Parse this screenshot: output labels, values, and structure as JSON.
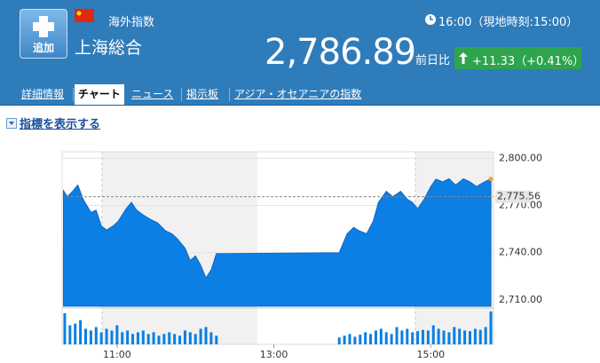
{
  "header": {
    "add_button": "追加",
    "category": "海外指数",
    "name": "上海総合",
    "time": "16:00（現地時刻:15:00）",
    "price": "2,786.89",
    "change_label": "前日比",
    "change": "+11.33（+0.41%）"
  },
  "tabs": [
    "詳細情報",
    "チャート",
    "ニュース",
    "掲示板",
    "アジア・オセアニアの指数"
  ],
  "indicator_link": "指標を表示する",
  "chart_data": {
    "type": "area",
    "x": [
      619,
      622,
      626,
      630,
      634,
      640,
      644,
      648,
      652,
      657,
      661,
      667,
      671,
      675,
      680,
      686,
      691,
      697,
      702,
      706,
      712,
      716,
      720,
      724,
      728,
      732,
      736,
      830,
      836,
      841,
      845,
      851,
      856,
      860,
      866,
      871,
      877,
      882,
      886,
      890,
      895,
      900,
      904,
      909,
      914,
      919,
      925,
      930,
      935,
      941,
      946
    ],
    "series": [
      {
        "color": "#0b7fe3",
        "values": [
          2779.4,
          2775.6,
          2779,
          2783,
          2774,
          2765.6,
          2767,
          2757,
          2754.4,
          2757,
          2760,
          2768,
          2772,
          2767,
          2764,
          2761,
          2759,
          2754,
          2752,
          2749,
          2743,
          2735,
          2738,
          2732,
          2724,
          2729,
          2739.4,
          2740,
          2752,
          2756,
          2754,
          2752,
          2760,
          2772,
          2779,
          2775.6,
          2779,
          2774,
          2772,
          2768,
          2774,
          2782,
          2786.7,
          2785,
          2787,
          2783,
          2787,
          2785,
          2782,
          2785,
          2786.89
        ]
      }
    ],
    "xlim": [
      618,
      948
    ],
    "xticks": [
      {
        "value": 660,
        "label": "11:00"
      },
      {
        "value": 780,
        "label": "13:00"
      },
      {
        "value": 900,
        "label": "15:00"
      }
    ],
    "ylim": [
      2706,
      2803
    ],
    "yticks": [
      {
        "value": 2710,
        "label": "2,710.00"
      },
      {
        "value": 2740,
        "label": "2,740.00"
      },
      {
        "value": 2770,
        "label": "2,770.00"
      },
      {
        "value": 2800,
        "label": "2,800.00"
      }
    ],
    "reference_line": {
      "value": 2775.56,
      "label": "2,775.56"
    },
    "grid": true,
    "volume": {
      "color": "#0b7fe3",
      "x": [
        620,
        624,
        628,
        632,
        636,
        640,
        644,
        648,
        652,
        656,
        660,
        664,
        668,
        672,
        676,
        680,
        684,
        688,
        692,
        696,
        700,
        704,
        708,
        712,
        716,
        720,
        724,
        728,
        732,
        736,
        830,
        834,
        838,
        842,
        846,
        850,
        854,
        858,
        862,
        866,
        870,
        874,
        878,
        882,
        886,
        890,
        894,
        898,
        902,
        906,
        910,
        914,
        918,
        922,
        926,
        930,
        934,
        938,
        942,
        946
      ],
      "values": [
        90,
        55,
        60,
        70,
        45,
        40,
        50,
        35,
        45,
        40,
        55,
        35,
        40,
        30,
        35,
        40,
        30,
        35,
        25,
        30,
        35,
        30,
        25,
        40,
        35,
        30,
        45,
        50,
        35,
        25,
        20,
        25,
        30,
        22,
        28,
        35,
        30,
        40,
        45,
        35,
        30,
        50,
        40,
        45,
        35,
        38,
        42,
        40,
        55,
        45,
        40,
        35,
        50,
        45,
        40,
        38,
        45,
        42,
        50,
        95
      ]
    }
  }
}
